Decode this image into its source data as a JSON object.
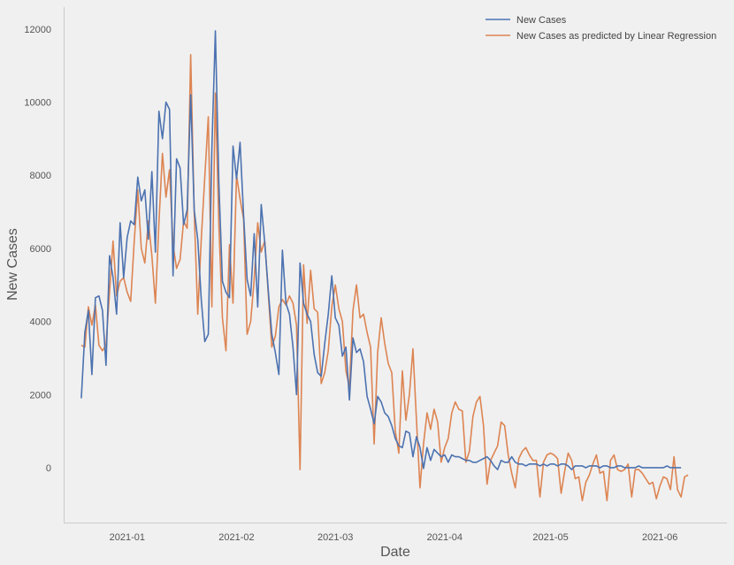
{
  "chart_data": {
    "type": "line",
    "xlabel": "Date",
    "ylabel": "New Cases",
    "grid": false,
    "legend_position": "top-right",
    "x_start": "2020-12-19",
    "x_range": [
      "2020-12-14",
      "2021-06-20"
    ],
    "ylim": [
      -1500,
      12600
    ],
    "x_ticks": [
      {
        "date": "2021-01-01",
        "label": "2021-01"
      },
      {
        "date": "2021-02-01",
        "label": "2021-02"
      },
      {
        "date": "2021-03-01",
        "label": "2021-03"
      },
      {
        "date": "2021-04-01",
        "label": "2021-04"
      },
      {
        "date": "2021-05-01",
        "label": "2021-05"
      },
      {
        "date": "2021-06-01",
        "label": "2021-06"
      }
    ],
    "y_ticks": [
      0,
      2000,
      4000,
      6000,
      8000,
      10000,
      12000
    ],
    "series": [
      {
        "name": "New Cases",
        "color": "#4c72b0",
        "values": [
          1900,
          3700,
          4300,
          2550,
          4650,
          4700,
          4300,
          2800,
          5800,
          5200,
          4200,
          6700,
          5200,
          6300,
          6750,
          6650,
          7950,
          7300,
          7600,
          6250,
          8100,
          5900,
          9750,
          9000,
          10000,
          9800,
          5250,
          8450,
          8200,
          6650,
          7050,
          10200,
          7050,
          6250,
          4600,
          3450,
          3650,
          8700,
          11950,
          7750,
          5100,
          4800,
          4650,
          8800,
          7900,
          8900,
          6900,
          5150,
          4700,
          6400,
          4400,
          7200,
          6150,
          4850,
          3650,
          3150,
          2550,
          5950,
          4500,
          4200,
          3300,
          2000,
          5600,
          4500,
          4200,
          4000,
          3100,
          2600,
          2500,
          3400,
          4200,
          5250,
          4100,
          3900,
          3050,
          3300,
          1850,
          3550,
          3150,
          3250,
          2900,
          1950,
          1600,
          1200,
          1950,
          1800,
          1500,
          1400,
          1150,
          800,
          600,
          550,
          1000,
          950,
          300,
          850,
          550,
          -20,
          550,
          200,
          500,
          400,
          300,
          350,
          150,
          350,
          300,
          300,
          250,
          200,
          200,
          150,
          150,
          200,
          250,
          300,
          200,
          50,
          -50,
          200,
          150,
          150,
          300,
          150,
          100,
          100,
          50,
          100,
          100,
          100,
          50,
          100,
          50,
          100,
          100,
          50,
          100,
          100,
          50,
          -50,
          50,
          50,
          50,
          0,
          50,
          50,
          50,
          0,
          50,
          50,
          0,
          0,
          50,
          50,
          0,
          0,
          0,
          0,
          50,
          0,
          0,
          0,
          0,
          0,
          0,
          0,
          50,
          0,
          0,
          0,
          0
        ]
      },
      {
        "name": "New Cases as predicted by Linear Regression",
        "color": "#dd8452",
        "values": [
          3350,
          3300,
          4400,
          3900,
          4450,
          3350,
          3200,
          3350,
          4800,
          6200,
          4700,
          5100,
          5200,
          4800,
          4550,
          6200,
          7600,
          6000,
          5600,
          6750,
          5800,
          4500,
          6700,
          8600,
          7400,
          8150,
          6100,
          5450,
          5700,
          6750,
          6550,
          11300,
          7000,
          4200,
          6250,
          7950,
          9600,
          4400,
          10250,
          6600,
          4100,
          3200,
          6100,
          4500,
          8000,
          7350,
          6800,
          3650,
          4000,
          5150,
          6700,
          5900,
          6200,
          4750,
          3300,
          3600,
          4400,
          4600,
          4450,
          4700,
          4500,
          3900,
          -50,
          5550,
          3950,
          5400,
          4350,
          4250,
          2300,
          2600,
          3200,
          4400,
          5000,
          4350,
          4000,
          2650,
          2200,
          4300,
          5000,
          4100,
          4200,
          3700,
          3300,
          650,
          3150,
          4100,
          3400,
          2850,
          2600,
          1000,
          400,
          2650,
          1300,
          2000,
          3250,
          1300,
          -550,
          650,
          1500,
          1050,
          1600,
          1250,
          150,
          550,
          800,
          1500,
          1800,
          1600,
          1550,
          150,
          450,
          1400,
          1800,
          1950,
          1150,
          -450,
          200,
          400,
          600,
          1250,
          1150,
          350,
          -150,
          -550,
          250,
          450,
          550,
          350,
          200,
          200,
          -800,
          150,
          350,
          400,
          350,
          250,
          -700,
          -100,
          400,
          200,
          -300,
          -250,
          -900,
          -400,
          -200,
          100,
          350,
          -150,
          -100,
          -900,
          200,
          350,
          -50,
          -100,
          -50,
          100,
          -800,
          -50,
          -50,
          -150,
          -300,
          -450,
          -400,
          -850,
          -500,
          -250,
          -300,
          -600,
          300,
          -600,
          -800,
          -250,
          -200
        ]
      }
    ]
  }
}
